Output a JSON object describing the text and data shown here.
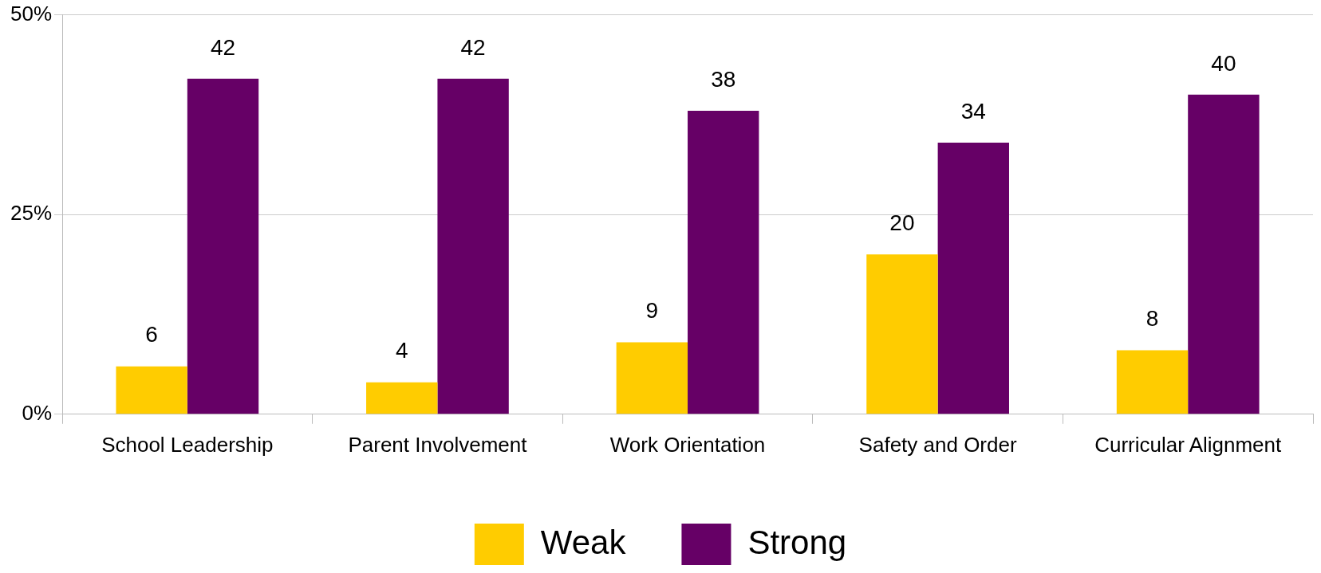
{
  "chart_data": {
    "type": "bar",
    "categories": [
      "School Leadership",
      "Parent Involvement",
      "Work Orientation",
      "Safety and Order",
      "Curricular Alignment"
    ],
    "series": [
      {
        "name": "Weak",
        "color": "#ffcc00",
        "values": [
          6,
          4,
          9,
          20,
          8
        ]
      },
      {
        "name": "Strong",
        "color": "#660066",
        "values": [
          42,
          42,
          38,
          34,
          40
        ]
      }
    ],
    "ylim": [
      0,
      50
    ],
    "yticks": [
      {
        "value": 0,
        "label": "0%"
      },
      {
        "value": 25,
        "label": "25%"
      },
      {
        "value": 50,
        "label": "50%"
      }
    ],
    "grid": "y",
    "legend": "bottom",
    "data_labels": true
  }
}
